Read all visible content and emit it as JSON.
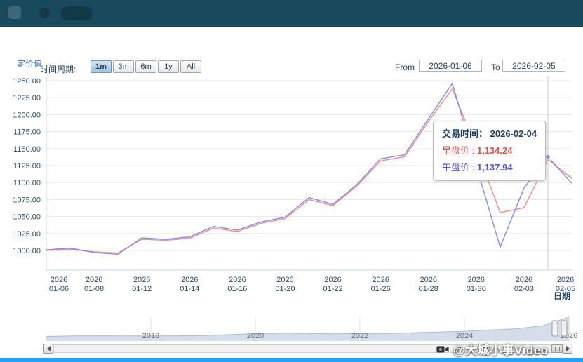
{
  "page": {
    "header_color": "#18495c",
    "progress_bar_color": "#2b9ff0"
  },
  "controls": {
    "y_axis_title": "定价值",
    "period_label": "时间周期:",
    "range_buttons": [
      "1m",
      "3m",
      "6m",
      "1y",
      "All"
    ],
    "selected_range": "1m",
    "from_label": "From",
    "from_value": "2026-01-06",
    "to_label": "To",
    "to_value": "2026-02-05"
  },
  "tooltip": {
    "time_label": "交易时间：",
    "date": "2026-02-04",
    "series1_label": "早盘价 :",
    "series1_value": "1,134.24",
    "series2_label": "午盘价 :",
    "series2_value": "1,137.94",
    "series1_color": "#d95050",
    "series2_color": "#5353d2"
  },
  "chart_data": [
    {
      "type": "line",
      "title": "",
      "xlabel": "日期",
      "ylabel": "定价值",
      "ylim": [
        985,
        1258
      ],
      "grid": "horizontal",
      "legend": "none",
      "tick_interval": 2,
      "yticks": [
        "1000.00",
        "1025.00",
        "1050.00",
        "1075.00",
        "1100.00",
        "1125.00",
        "1150.00",
        "1175.00",
        "1200.00",
        "1225.00",
        "1250.00"
      ],
      "x": [
        "2026-01-06",
        "2026-01-07",
        "2026-01-08",
        "2026-01-09",
        "2026-01-12",
        "2026-01-13",
        "2026-01-14",
        "2026-01-15",
        "2026-01-16",
        "2026-01-19",
        "2026-01-20",
        "2026-01-21",
        "2026-01-22",
        "2026-01-23",
        "2026-01-26",
        "2026-01-27",
        "2026-01-28",
        "2026-01-29",
        "2026-01-30",
        "2026-02-02",
        "2026-02-03",
        "2026-02-04",
        "2026-02-05"
      ],
      "series": [
        {
          "name": "早盘价",
          "color": "#f28b8b",
          "values": [
            1000.2,
            1001.8,
            998.0,
            996.2,
            1016.5,
            1015.0,
            1018.0,
            1033.0,
            1028.0,
            1040.0,
            1047.0,
            1075.0,
            1066.0,
            1095.0,
            1132.0,
            1138.0,
            1190.0,
            1238.0,
            1150.0,
            1056.0,
            1063.0,
            1134.24,
            1106.0
          ]
        },
        {
          "name": "午盘价",
          "color": "#8888e8",
          "values": [
            1001.0,
            1003.5,
            997.0,
            994.5,
            1018.5,
            1016.5,
            1020.0,
            1035.5,
            1030.0,
            1042.0,
            1049.0,
            1078.0,
            1068.0,
            1097.0,
            1135.0,
            1141.0,
            1194.0,
            1246.0,
            1125.0,
            1005.0,
            1092.0,
            1137.94,
            1099.0
          ]
        }
      ],
      "crosshair_index": 21
    },
    {
      "type": "area",
      "title": "navigator",
      "ylim": [
        0,
        1250
      ],
      "x": [
        2016,
        2016.5,
        2017,
        2017.5,
        2018,
        2018.5,
        2019,
        2019.5,
        2020,
        2020.5,
        2021,
        2021.5,
        2022,
        2022.5,
        2023,
        2023.5,
        2024,
        2024.5,
        2025,
        2025.5,
        2026
      ],
      "values": [
        240,
        265,
        272,
        268,
        262,
        270,
        285,
        330,
        385,
        410,
        395,
        378,
        392,
        395,
        430,
        470,
        510,
        580,
        640,
        800,
        1250
      ],
      "xticks": [
        "2018",
        "2020",
        "2022",
        "2024",
        "2026"
      ]
    }
  ],
  "footer": {
    "watermark": "@大城小事Video"
  }
}
